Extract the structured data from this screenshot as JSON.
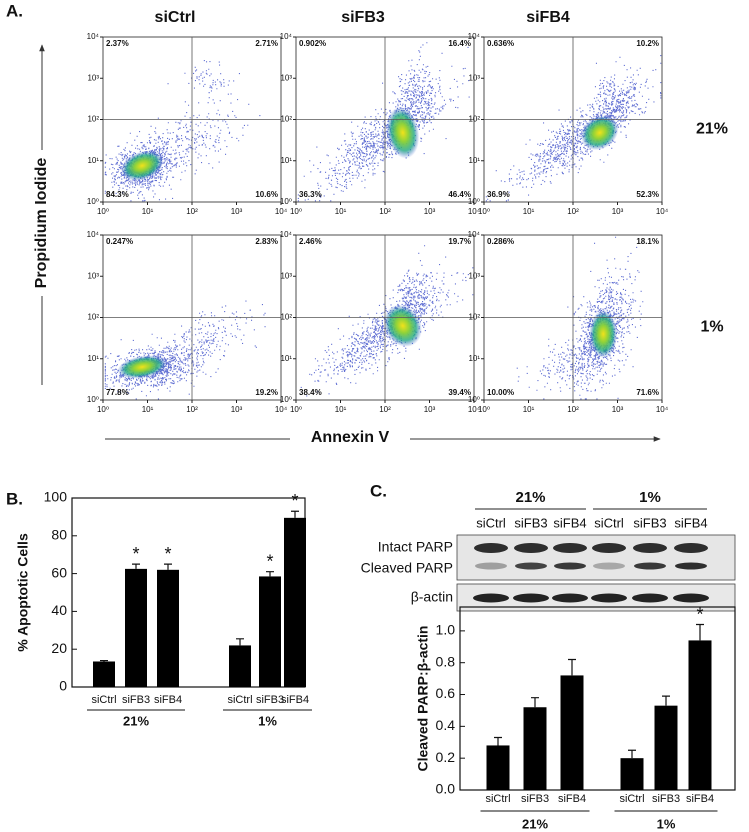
{
  "panel_labels": [
    "A.",
    "B.",
    "C."
  ],
  "flow": {
    "columns": [
      "siCtrl",
      "siFB3",
      "siFB4"
    ],
    "rows": [
      "21%",
      "1%"
    ],
    "y_label": "Propidium Iodide",
    "x_label": "Annexin V",
    "xlim": [
      1,
      10000
    ],
    "ylim": [
      1,
      10000
    ],
    "log_scale": true,
    "gate": 100,
    "xticks": [
      {
        "value": 1,
        "label": "10⁰"
      },
      {
        "value": 10,
        "label": "10¹"
      },
      {
        "value": 100,
        "label": "10²"
      },
      {
        "value": 1000,
        "label": "10³"
      },
      {
        "value": 10000,
        "label": "10⁴"
      }
    ],
    "yticks": [
      {
        "value": 1,
        "label": "10⁰"
      },
      {
        "value": 10,
        "label": "10¹"
      },
      {
        "value": 100,
        "label": "10²"
      },
      {
        "value": 1000,
        "label": "10³"
      },
      {
        "value": 10000,
        "label": "10⁴"
      }
    ],
    "quadrants": [
      [
        {
          "upper_left": "2.37%",
          "upper_right": "2.71%",
          "lower_left": "84.3%",
          "lower_right": "10.6%"
        },
        {
          "upper_left": "0.902%",
          "upper_right": "16.4%",
          "lower_left": "36.3%",
          "lower_right": "46.4%"
        },
        {
          "upper_left": "0.636%",
          "upper_right": "10.2%",
          "lower_left": "36.9%",
          "lower_right": "52.3%"
        }
      ],
      [
        {
          "upper_left": "0.247%",
          "upper_right": "2.83%",
          "lower_left": "77.8%",
          "lower_right": "19.2%"
        },
        {
          "upper_left": "2.46%",
          "upper_right": "19.7%",
          "lower_left": "38.4%",
          "lower_right": "39.4%"
        },
        {
          "upper_left": "0.286%",
          "upper_right": "18.1%",
          "lower_left": "10.00%",
          "lower_right": "71.6%"
        }
      ]
    ]
  },
  "blot": {
    "groups": [
      "21%",
      "1%"
    ],
    "lanes": [
      "siCtrl",
      "siFB3",
      "siFB4",
      "siCtrl",
      "siFB3",
      "siFB4"
    ],
    "bands": [
      "Intact PARP",
      "Cleaved PARP",
      "β-actin"
    ]
  },
  "chart_data": [
    {
      "type": "bar",
      "y_label": "% Apoptotic Cells",
      "categories": [
        "siCtrl",
        "siFB3",
        "siFB4",
        "siCtrl",
        "siFB3",
        "siFB4"
      ],
      "groups": [
        "21%",
        "1%"
      ],
      "values": [
        13.5,
        62.5,
        62,
        22,
        58.5,
        89.5
      ],
      "errors": [
        0.5,
        2.5,
        3,
        3.5,
        2.5,
        3.5
      ],
      "markers": [
        null,
        "*",
        "*",
        null,
        "*",
        "*"
      ],
      "color": "#000000",
      "ylim": [
        0,
        100
      ],
      "yticks": [
        0,
        20,
        40,
        60,
        80,
        100
      ]
    },
    {
      "type": "bar",
      "y_label": "Cleaved PARP:β-actin",
      "categories": [
        "siCtrl",
        "siFB3",
        "siFB4",
        "siCtrl",
        "siFB3",
        "siFB4"
      ],
      "groups": [
        "21%",
        "1%"
      ],
      "values": [
        0.28,
        0.52,
        0.72,
        0.2,
        0.53,
        0.94
      ],
      "errors": [
        0.05,
        0.06,
        0.1,
        0.05,
        0.06,
        0.1
      ],
      "markers": [
        null,
        null,
        null,
        null,
        null,
        "*"
      ],
      "color": "#000000",
      "ylim": [
        0,
        1.15
      ],
      "yticks": [
        {
          "value": 0,
          "label": "0.0"
        },
        0.2,
        0.4,
        0.6,
        0.8,
        {
          "value": 1,
          "label": "1.0"
        }
      ]
    }
  ]
}
